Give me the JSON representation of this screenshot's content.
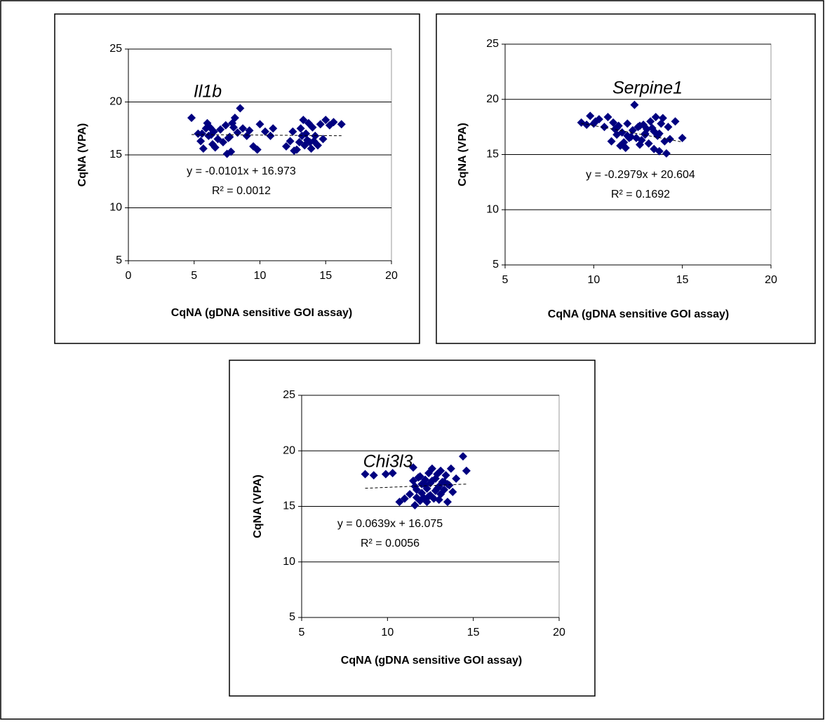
{
  "chart_data": [
    {
      "type": "scatter",
      "title": "Il1b",
      "xlabel": "CqNA (gDNA sensitive GOI assay)",
      "ylabel": "CqNA (VPA)",
      "equation": "y = -0.0101x + 16.973",
      "r_squared": "R² = 0.0012",
      "trendline": {
        "slope": -0.0101,
        "intercept": 16.973
      },
      "color": "#000080",
      "grid": true,
      "xlim": [
        0,
        20
      ],
      "xticks": [
        0,
        5,
        10,
        15,
        20
      ],
      "ylim": [
        5,
        25
      ],
      "yticks": [
        5,
        10,
        15,
        20,
        25
      ],
      "x": [
        4.8,
        5.3,
        5.5,
        5.7,
        5.9,
        6.0,
        6.1,
        6.2,
        6.4,
        6.5,
        6.6,
        6.8,
        7.0,
        7.2,
        7.4,
        7.5,
        7.6,
        7.8,
        8.0,
        8.1,
        8.3,
        8.5,
        8.7,
        9.0,
        9.2,
        9.5,
        9.8,
        10.0,
        10.4,
        10.8,
        11.0,
        12.0,
        12.3,
        12.5,
        12.8,
        13.0,
        13.1,
        13.2,
        13.3,
        13.4,
        13.5,
        13.6,
        13.7,
        13.8,
        14.0,
        14.2,
        14.4,
        14.6,
        14.8,
        15.0,
        15.3,
        15.6,
        16.2,
        7.7,
        7.9,
        6.3,
        5.6,
        13.9,
        12.6,
        14.1
      ],
      "y": [
        18.5,
        17.0,
        16.3,
        15.6,
        17.5,
        18.0,
        16.8,
        17.6,
        16.0,
        17.2,
        15.7,
        16.5,
        17.4,
        16.2,
        17.8,
        15.1,
        16.6,
        15.3,
        17.6,
        18.5,
        17.1,
        19.4,
        17.5,
        16.8,
        17.3,
        15.8,
        15.5,
        17.9,
        17.2,
        16.8,
        17.5,
        15.8,
        16.3,
        17.2,
        15.5,
        16.2,
        17.5,
        16.8,
        18.3,
        15.9,
        17.0,
        16.4,
        18.0,
        16.2,
        17.6,
        16.8,
        15.9,
        17.9,
        16.5,
        18.3,
        17.8,
        18.1,
        17.9,
        16.7,
        18.0,
        16.9,
        17.0,
        15.6,
        15.4,
        16.3
      ]
    },
    {
      "type": "scatter",
      "title": "Serpine1",
      "xlabel": "CqNA (gDNA sensitive GOI assay)",
      "ylabel": "CqNA (VPA)",
      "equation": "y = -0.2979x + 20.604",
      "r_squared": "R² = 0.1692",
      "trendline": {
        "slope": -0.2979,
        "intercept": 20.604
      },
      "color": "#000080",
      "grid": true,
      "xlim": [
        5,
        20
      ],
      "xticks": [
        5,
        10,
        15,
        20
      ],
      "ylim": [
        5,
        25
      ],
      "yticks": [
        5,
        10,
        15,
        20,
        25
      ],
      "x": [
        9.3,
        9.6,
        9.8,
        10.0,
        10.3,
        10.6,
        10.8,
        11.0,
        11.1,
        11.2,
        11.3,
        11.4,
        11.5,
        11.6,
        11.7,
        11.8,
        11.9,
        12.0,
        12.1,
        12.2,
        12.3,
        12.4,
        12.5,
        12.6,
        12.7,
        12.8,
        12.9,
        13.0,
        13.1,
        13.2,
        13.3,
        13.4,
        13.5,
        13.6,
        13.7,
        13.8,
        13.9,
        14.0,
        14.1,
        14.2,
        14.3,
        14.6,
        15.0,
        10.1,
        11.3,
        12.9,
        13.4,
        13.7,
        11.9,
        12.6
      ],
      "y": [
        17.9,
        17.7,
        18.5,
        17.8,
        18.2,
        17.5,
        18.4,
        16.2,
        17.9,
        17.3,
        16.8,
        17.6,
        15.8,
        17.0,
        16.1,
        15.6,
        17.8,
        16.5,
        16.6,
        17.2,
        19.5,
        16.5,
        17.5,
        15.9,
        16.3,
        17.7,
        16.8,
        17.3,
        16.0,
        18.0,
        17.4,
        15.5,
        18.4,
        16.7,
        15.3,
        17.8,
        18.3,
        16.2,
        15.1,
        17.5,
        16.4,
        18.0,
        16.5,
        18.0,
        17.4,
        16.9,
        17.1,
        16.9,
        16.7,
        17.6
      ]
    },
    {
      "type": "scatter",
      "title": "Chi3l3",
      "xlabel": "CqNA (gDNA sensitive GOI assay)",
      "ylabel": "CqNA (VPA)",
      "equation": "y = 0.0639x + 16.075",
      "r_squared": "R² = 0.0056",
      "trendline": {
        "slope": 0.0639,
        "intercept": 16.075
      },
      "color": "#000080",
      "grid": true,
      "xlim": [
        5,
        20
      ],
      "xticks": [
        5,
        10,
        15,
        20
      ],
      "ylim": [
        5,
        25
      ],
      "yticks": [
        5,
        10,
        15,
        20,
        25
      ],
      "x": [
        8.7,
        9.2,
        9.9,
        10.3,
        10.7,
        11.0,
        11.3,
        11.5,
        11.5,
        11.6,
        11.7,
        11.8,
        11.9,
        12.0,
        12.0,
        12.1,
        12.2,
        12.3,
        12.3,
        12.4,
        12.5,
        12.5,
        12.6,
        12.7,
        12.8,
        12.8,
        12.9,
        13.0,
        13.0,
        13.1,
        13.2,
        13.3,
        13.4,
        13.5,
        13.6,
        13.7,
        13.8,
        14.0,
        14.4,
        14.6,
        11.6,
        12.2,
        12.6,
        13.1,
        13.5,
        11.9,
        12.4,
        13.3,
        11.7,
        12.9
      ],
      "y": [
        17.9,
        17.8,
        17.9,
        18.0,
        15.4,
        15.7,
        16.1,
        18.5,
        17.3,
        15.1,
        16.5,
        17.6,
        15.5,
        17.0,
        16.2,
        15.8,
        17.4,
        16.6,
        15.4,
        18.0,
        17.1,
        16.0,
        18.4,
        15.7,
        17.5,
        16.4,
        17.9,
        16.8,
        15.6,
        18.2,
        17.2,
        16.5,
        17.8,
        15.4,
        16.9,
        18.4,
        16.3,
        17.5,
        19.5,
        18.2,
        16.8,
        16.9,
        17.3,
        16.1,
        17.0,
        17.7,
        15.9,
        17.2,
        15.8,
        16.6
      ]
    }
  ]
}
